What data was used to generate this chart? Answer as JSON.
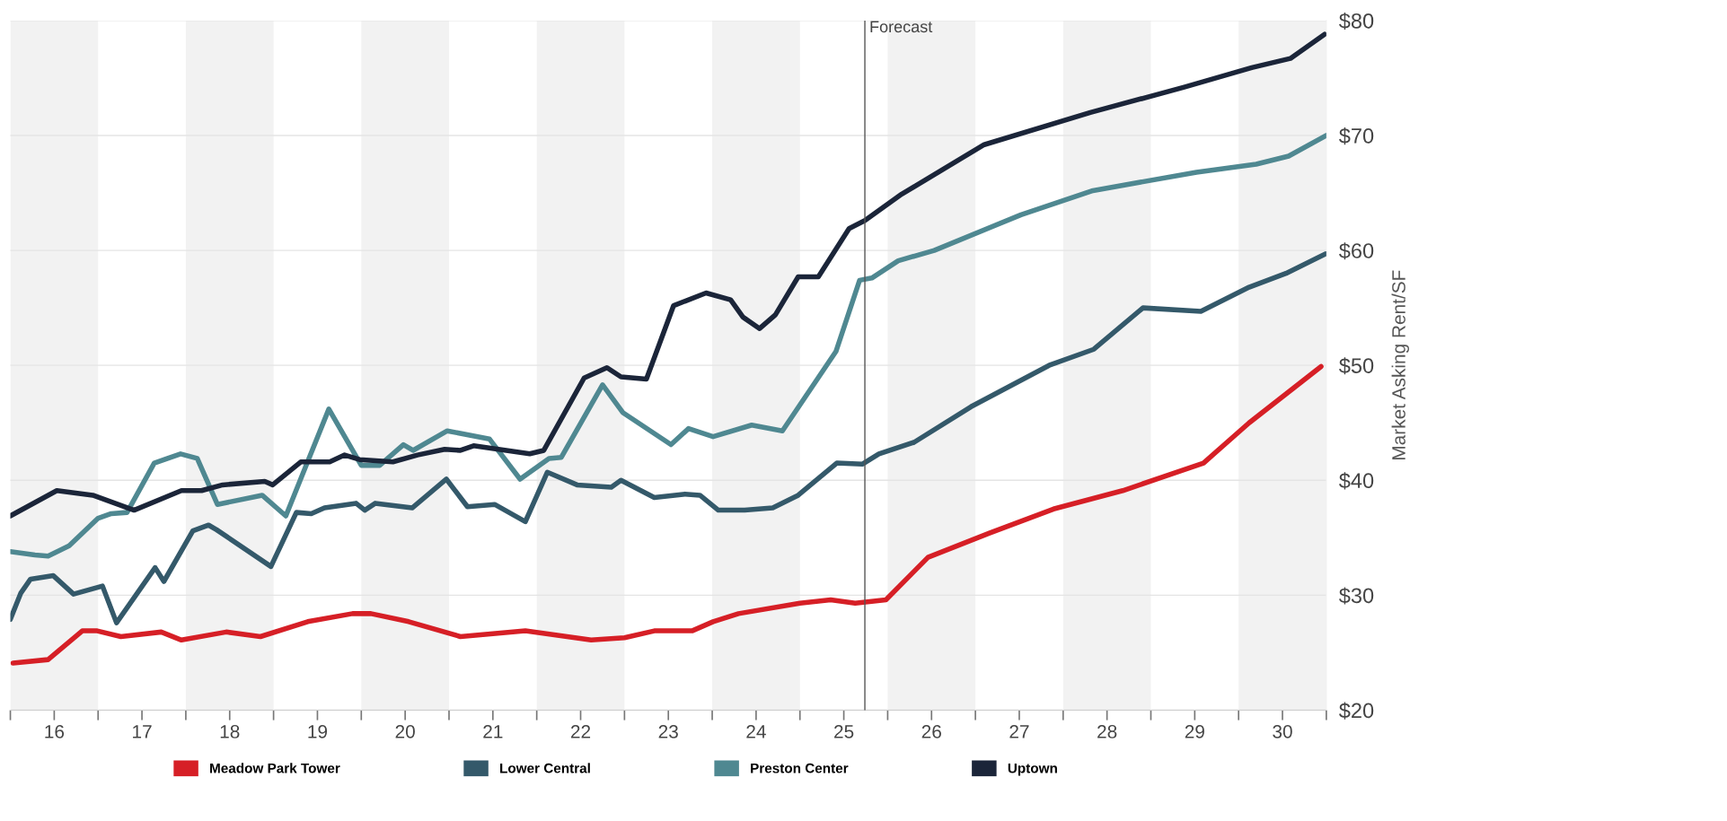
{
  "chart_data": {
    "type": "line",
    "ylabel": "Market Asking Rent/SF",
    "xlim": [
      15.5,
      30.5
    ],
    "xticks": [
      {
        "value": 15.5,
        "label": null
      },
      16,
      {
        "value": 16.5,
        "label": null
      },
      17,
      {
        "value": 17.5,
        "label": null
      },
      18,
      {
        "value": 18.5,
        "label": null
      },
      19,
      {
        "value": 19.5,
        "label": null
      },
      20,
      {
        "value": 20.5,
        "label": null
      },
      21,
      {
        "value": 21.5,
        "label": null
      },
      22,
      {
        "value": 22.5,
        "label": null
      },
      23,
      {
        "value": 23.5,
        "label": null
      },
      24,
      {
        "value": 24.5,
        "label": null
      },
      25,
      {
        "value": 25.5,
        "label": null
      },
      26,
      {
        "value": 26.5,
        "label": null
      },
      27,
      {
        "value": 27.5,
        "label": null
      },
      28,
      {
        "value": 28.5,
        "label": null
      },
      29,
      {
        "value": 29.5,
        "label": null
      },
      30,
      {
        "value": 30.5,
        "label": null
      }
    ],
    "ylim": [
      20,
      80
    ],
    "yticks": [
      {
        "value": 20,
        "label": "$20"
      },
      {
        "value": 30,
        "label": "$30"
      },
      {
        "value": 40,
        "label": "$40"
      },
      {
        "value": 50,
        "label": "$50"
      },
      {
        "value": 60,
        "label": "$60"
      },
      {
        "value": 70,
        "label": "$70"
      },
      {
        "value": 80,
        "label": "$80"
      }
    ],
    "grid": "y",
    "legend": "bottom",
    "marker": "none",
    "line_style": "solid",
    "ref_lines": [
      {
        "axis": "x",
        "value": 25.24,
        "label": "Forecast",
        "color": "#555555"
      }
    ],
    "bands": [
      {
        "axis": "x",
        "from": 15.5,
        "to": 16.5,
        "color": "#f2f2f2"
      },
      {
        "axis": "x",
        "from": 17.5,
        "to": 18.5,
        "color": "#f2f2f2"
      },
      {
        "axis": "x",
        "from": 19.5,
        "to": 20.5,
        "color": "#f2f2f2"
      },
      {
        "axis": "x",
        "from": 21.5,
        "to": 22.5,
        "color": "#f2f2f2"
      },
      {
        "axis": "x",
        "from": 23.5,
        "to": 24.5,
        "color": "#f2f2f2"
      },
      {
        "axis": "x",
        "from": 25.5,
        "to": 26.5,
        "color": "#f2f2f2"
      },
      {
        "axis": "x",
        "from": 27.5,
        "to": 28.5,
        "color": "#f2f2f2"
      },
      {
        "axis": "x",
        "from": 29.5,
        "to": 30.5,
        "color": "#f2f2f2"
      }
    ],
    "series": [
      {
        "name": "Meadow Park Tower",
        "color": "#d61f26",
        "x": [
          15.53,
          15.93,
          16.32,
          16.49,
          16.76,
          17.22,
          17.45,
          17.96,
          18.35,
          18.89,
          19.4,
          19.61,
          20.04,
          20.63,
          21.37,
          22.12,
          22.5,
          22.84,
          23.27,
          23.51,
          23.8,
          24.5,
          24.85,
          25.13,
          25.48,
          25.96,
          26.66,
          27.39,
          28.18,
          29.1,
          29.62,
          30.44
        ],
        "values": [
          24.1,
          24.4,
          26.9,
          26.9,
          26.4,
          26.8,
          26.1,
          26.8,
          26.4,
          27.7,
          28.4,
          28.4,
          27.7,
          26.4,
          26.9,
          26.1,
          26.3,
          26.9,
          26.9,
          27.7,
          28.4,
          29.3,
          29.6,
          29.3,
          29.6,
          33.3,
          35.4,
          37.5,
          39.1,
          41.5,
          45.0,
          49.9
        ]
      },
      {
        "name": "Lower Central",
        "color": "#34596a",
        "x": [
          15.5,
          15.62,
          15.73,
          15.99,
          16.22,
          16.55,
          16.71,
          17.15,
          17.25,
          17.58,
          17.76,
          17.85,
          18.47,
          18.76,
          18.93,
          19.08,
          19.44,
          19.54,
          19.66,
          20.08,
          20.47,
          20.71,
          21.02,
          21.37,
          21.62,
          21.96,
          22.35,
          22.46,
          22.84,
          23.19,
          23.36,
          23.57,
          23.87,
          24.19,
          24.48,
          24.92,
          25.21,
          25.4,
          25.8,
          26.45,
          27.34,
          27.85,
          28.41,
          29.07,
          29.62,
          30.04,
          30.49
        ],
        "values": [
          27.9,
          30.2,
          31.4,
          31.7,
          30.1,
          30.8,
          27.6,
          32.4,
          31.2,
          35.6,
          36.1,
          35.7,
          32.5,
          37.2,
          37.1,
          37.6,
          38.0,
          37.4,
          38.0,
          37.6,
          40.1,
          37.7,
          37.9,
          36.4,
          40.7,
          39.6,
          39.4,
          40.0,
          38.5,
          38.8,
          38.7,
          37.4,
          37.4,
          37.6,
          38.7,
          41.5,
          41.4,
          42.3,
          43.3,
          46.4,
          50.0,
          51.4,
          55.0,
          54.7,
          56.8,
          58.0,
          59.7
        ]
      },
      {
        "name": "Preston Center",
        "color": "#4f8891",
        "x": [
          15.5,
          15.78,
          15.93,
          16.17,
          16.5,
          16.65,
          16.83,
          17.14,
          17.44,
          17.63,
          17.86,
          18.37,
          18.64,
          19.13,
          19.5,
          19.71,
          19.98,
          20.09,
          20.48,
          20.96,
          21.31,
          21.64,
          21.78,
          22.25,
          22.48,
          23.03,
          23.23,
          23.51,
          23.95,
          24.3,
          24.91,
          25.18,
          25.32,
          25.62,
          26.03,
          27.02,
          27.84,
          29.02,
          29.7,
          30.07,
          30.5
        ],
        "values": [
          33.8,
          33.5,
          33.4,
          34.3,
          36.7,
          37.1,
          37.2,
          41.5,
          42.3,
          41.9,
          37.9,
          38.7,
          36.9,
          46.2,
          41.3,
          41.3,
          43.1,
          42.6,
          44.3,
          43.6,
          40.1,
          41.9,
          42.0,
          48.3,
          45.9,
          43.1,
          44.5,
          43.8,
          44.8,
          44.3,
          51.2,
          57.4,
          57.6,
          59.1,
          60.0,
          63.1,
          65.2,
          66.8,
          67.5,
          68.2,
          70.0
        ]
      },
      {
        "name": "Uptown",
        "color": "#1b2539",
        "x": [
          15.5,
          16.03,
          16.44,
          16.91,
          17.45,
          17.68,
          17.92,
          18.4,
          18.49,
          18.81,
          19.14,
          19.31,
          19.48,
          19.86,
          20.14,
          20.45,
          20.63,
          20.78,
          21.42,
          21.58,
          22.04,
          22.3,
          22.46,
          22.75,
          23.06,
          23.43,
          23.71,
          23.85,
          24.04,
          24.22,
          24.48,
          24.71,
          25.06,
          25.24,
          25.66,
          26.6,
          27.81,
          28.88,
          29.65,
          30.09,
          30.48
        ],
        "values": [
          36.9,
          39.1,
          38.7,
          37.4,
          39.1,
          39.1,
          39.6,
          39.9,
          39.6,
          41.6,
          41.6,
          42.2,
          41.8,
          41.6,
          42.2,
          42.7,
          42.6,
          43.0,
          42.3,
          42.6,
          48.9,
          49.8,
          49.0,
          48.8,
          55.2,
          56.3,
          55.7,
          54.2,
          53.2,
          54.4,
          57.7,
          57.7,
          61.9,
          62.6,
          64.9,
          69.2,
          72.0,
          74.2,
          75.9,
          76.7,
          78.8
        ]
      }
    ]
  }
}
